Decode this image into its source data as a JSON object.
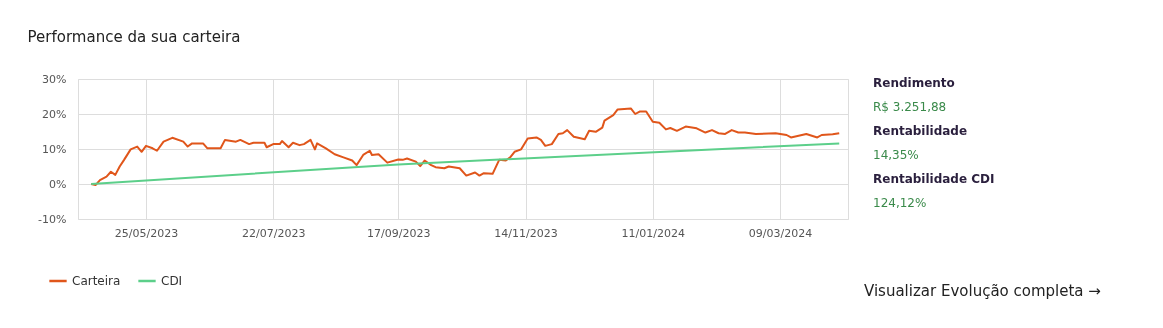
{
  "chart_data": {
    "type": "line",
    "title": "Performance da sua carteira",
    "xlim": [
      "2023-04-24",
      "2024-04-09"
    ],
    "xticks": [
      {
        "value": "2023-05-25",
        "label": "25/05/2023"
      },
      {
        "value": "2023-07-22",
        "label": "22/07/2023"
      },
      {
        "value": "2023-09-17",
        "label": "17/09/2023"
      },
      {
        "value": "2023-11-14",
        "label": "14/11/2023"
      },
      {
        "value": "2024-01-11",
        "label": "11/01/2024"
      },
      {
        "value": "2024-03-09",
        "label": "09/03/2024"
      }
    ],
    "ylim": [
      -10,
      30
    ],
    "yticks": [
      {
        "value": -10,
        "label": "-10%"
      },
      {
        "value": 0,
        "label": "0%"
      },
      {
        "value": 10,
        "label": "10%"
      },
      {
        "value": 20,
        "label": "20%"
      },
      {
        "value": 30,
        "label": "30%"
      }
    ],
    "grid": true,
    "legend": "bottom left",
    "line_style": "solid",
    "series": [
      {
        "name": "Carteira",
        "color": "#e0561b",
        "x": [
          "2023-04-30",
          "2023-05-02",
          "2023-05-04",
          "2023-05-07",
          "2023-05-09",
          "2023-05-11",
          "2023-05-13",
          "2023-05-15",
          "2023-05-18",
          "2023-05-21",
          "2023-05-23",
          "2023-05-25",
          "2023-05-28",
          "2023-05-30",
          "2023-06-02",
          "2023-06-06",
          "2023-06-11",
          "2023-06-13",
          "2023-06-15",
          "2023-06-20",
          "2023-06-22",
          "2023-06-28",
          "2023-06-30",
          "2023-07-05",
          "2023-07-07",
          "2023-07-11",
          "2023-07-13",
          "2023-07-18",
          "2023-07-19",
          "2023-07-22",
          "2023-07-25",
          "2023-07-26",
          "2023-07-29",
          "2023-07-31",
          "2023-08-03",
          "2023-08-05",
          "2023-08-08",
          "2023-08-10",
          "2023-08-11",
          "2023-08-15",
          "2023-08-19",
          "2023-08-23",
          "2023-08-27",
          "2023-08-29",
          "2023-09-01",
          "2023-09-04",
          "2023-09-05",
          "2023-09-08",
          "2023-09-12",
          "2023-09-17",
          "2023-09-19",
          "2023-09-21",
          "2023-09-25",
          "2023-09-27",
          "2023-09-29",
          "2023-10-02",
          "2023-10-04",
          "2023-10-08",
          "2023-10-10",
          "2023-10-15",
          "2023-10-18",
          "2023-10-22",
          "2023-10-24",
          "2023-10-26",
          "2023-10-30",
          "2023-11-02",
          "2023-11-05",
          "2023-11-07",
          "2023-11-09",
          "2023-11-12",
          "2023-11-15",
          "2023-11-19",
          "2023-11-21",
          "2023-11-23",
          "2023-11-26",
          "2023-11-29",
          "2023-12-01",
          "2023-12-03",
          "2023-12-06",
          "2023-12-11",
          "2023-12-13",
          "2023-12-16",
          "2023-12-19",
          "2023-12-20",
          "2023-12-24",
          "2023-12-26",
          "2024-01-01",
          "2024-01-03",
          "2024-01-05",
          "2024-01-08",
          "2024-01-11",
          "2024-01-14",
          "2024-01-17",
          "2024-01-19",
          "2024-01-22",
          "2024-01-26",
          "2024-01-31",
          "2024-02-04",
          "2024-02-07",
          "2024-02-10",
          "2024-02-13",
          "2024-02-16",
          "2024-02-19",
          "2024-02-22",
          "2024-02-27",
          "2024-03-07",
          "2024-03-12",
          "2024-03-14",
          "2024-03-21",
          "2024-03-26",
          "2024-03-28",
          "2024-04-02",
          "2024-04-05"
        ],
        "values": [
          0,
          -0.3,
          1.1,
          2.1,
          3.5,
          2.6,
          5.0,
          6.9,
          9.9,
          10.7,
          9.2,
          10.9,
          10.2,
          9.5,
          12.1,
          13.2,
          12.1,
          10.7,
          11.6,
          11.6,
          10.2,
          10.2,
          12.6,
          12.1,
          12.6,
          11.4,
          11.8,
          11.8,
          10.5,
          11.4,
          11.4,
          12.3,
          10.5,
          11.8,
          11.1,
          11.4,
          12.6,
          9.9,
          11.6,
          10.2,
          8.5,
          7.6,
          6.7,
          5.4,
          8.3,
          9.5,
          8.3,
          8.5,
          6.1,
          7.0,
          6.9,
          7.3,
          6.4,
          5.1,
          6.7,
          5.4,
          4.8,
          4.5,
          5.0,
          4.5,
          2.4,
          3.3,
          2.4,
          3.1,
          2.9,
          6.9,
          6.7,
          7.6,
          9.2,
          9.9,
          13.0,
          13.3,
          12.6,
          10.9,
          11.4,
          14.3,
          14.5,
          15.4,
          13.5,
          12.8,
          15.2,
          14.9,
          16.1,
          18.1,
          19.7,
          21.3,
          21.6,
          20.0,
          20.7,
          20.7,
          17.8,
          17.5,
          15.6,
          16.0,
          15.2,
          16.4,
          15.9,
          14.7,
          15.4,
          14.5,
          14.3,
          15.4,
          14.7,
          14.7,
          14.3,
          14.5,
          14.0,
          13.3,
          14.3,
          13.3,
          14.0,
          14.2,
          14.5
        ]
      },
      {
        "name": "CDI",
        "color": "#5ccf8a",
        "x": [
          "2023-04-30",
          "2023-09-17",
          "2024-04-05"
        ],
        "values": [
          0,
          5.6,
          11.6
        ]
      }
    ],
    "annotations": [
      "Rendimento",
      "R$ 3.251,88",
      "Rentabilidade",
      "14,35%",
      "Rentabilidade CDI",
      "124,12%",
      "Visualizar Evolução completa →"
    ]
  }
}
